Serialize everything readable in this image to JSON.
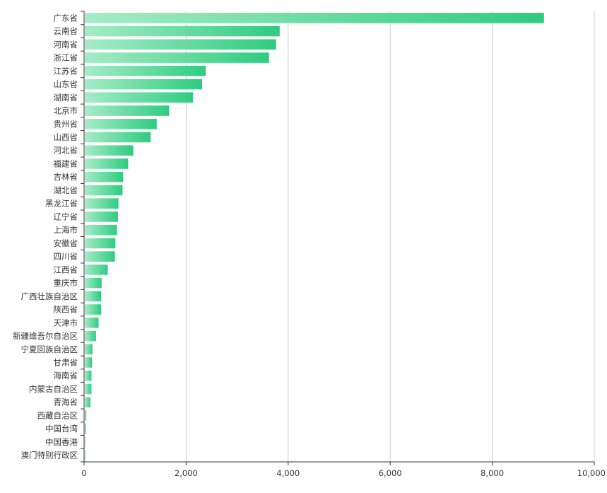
{
  "chart_data": {
    "type": "bar",
    "orientation": "horizontal",
    "categories": [
      "广东省",
      "云南省",
      "河南省",
      "浙江省",
      "江苏省",
      "山东省",
      "湖南省",
      "北京市",
      "贵州省",
      "山西省",
      "河北省",
      "福建省",
      "吉林省",
      "湖北省",
      "黑龙江省",
      "辽宁省",
      "上海市",
      "安徽省",
      "四川省",
      "江西省",
      "重庆市",
      "广西壮族自治区",
      "陕西省",
      "天津市",
      "新疆维吾尔自治区",
      "宁夏回族自治区",
      "甘肃省",
      "海南省",
      "内蒙古自治区",
      "青海省",
      "西藏自治区",
      "中国台湾",
      "中国香港",
      "澳门特别行政区"
    ],
    "values": [
      9000,
      3820,
      3750,
      3610,
      2370,
      2300,
      2120,
      1650,
      1410,
      1290,
      950,
      850,
      750,
      740,
      660,
      650,
      630,
      600,
      590,
      450,
      330,
      320,
      320,
      270,
      220,
      150,
      140,
      130,
      130,
      110,
      30,
      25,
      8,
      5
    ],
    "xlim": [
      0,
      10000
    ],
    "x_ticks": [
      0,
      2000,
      4000,
      6000,
      8000,
      10000
    ],
    "x_tick_labels": [
      "0",
      "2,000",
      "4,000",
      "6,000",
      "8,000",
      "10,000"
    ],
    "grid": true,
    "colors": {
      "bar_start": "#a6ecc6",
      "bar_end": "#2ecc80",
      "grid": "#cccccc",
      "axis": "#333333"
    }
  }
}
